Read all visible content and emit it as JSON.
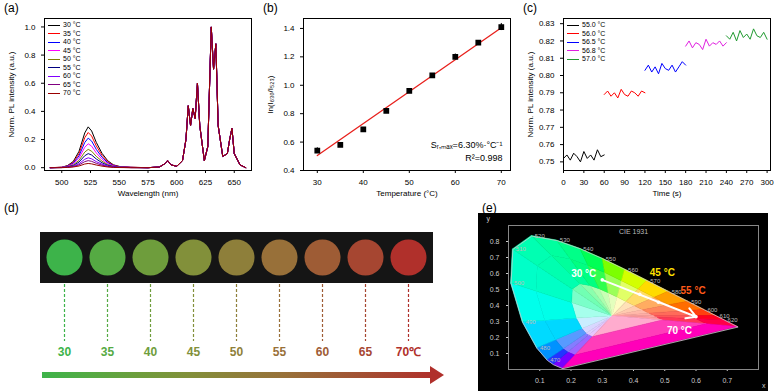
{
  "chart_data": [
    {
      "type": "line",
      "title": "(a)",
      "x_label": "Wavelength (nm)",
      "y_label": "Norm. PL intensity (a.u.)",
      "xlim": [
        485,
        665
      ],
      "xticks": [
        500,
        525,
        550,
        575,
        600,
        625,
        650
      ],
      "ylim": [
        -0.02,
        1.06
      ],
      "yticks": [
        {
          "value": 0,
          "label": "0.0"
        },
        0.2,
        0.4,
        0.6,
        0.8,
        {
          "value": 1,
          "label": "1.0"
        }
      ],
      "legend": "top-left",
      "x": [
        490,
        500,
        505,
        510,
        515,
        520,
        523,
        526,
        530,
        535,
        540,
        545,
        550,
        560,
        575,
        585,
        590,
        592,
        595,
        600,
        605,
        608,
        610,
        612,
        614,
        616,
        618,
        620,
        624,
        627,
        630,
        632,
        634,
        636,
        640,
        644,
        646,
        648,
        650,
        655,
        660
      ],
      "series": [
        {
          "name": "30 °C",
          "color": "#000000",
          "values": [
            0,
            0.003,
            0.015,
            0.044,
            0.116,
            0.247,
            0.29,
            0.261,
            0.18,
            0.102,
            0.049,
            0.02,
            0.009,
            0.003,
            0,
            0.005,
            0.03,
            0.05,
            0.02,
            0.01,
            0.05,
            0.2,
            0.44,
            0.3,
            0.42,
            0.35,
            0.6,
            0.3,
            0.05,
            0.15,
            1,
            0.7,
            0.88,
            0.3,
            0.08,
            0.1,
            0.2,
            0.28,
            0.1,
            0.02,
            0
          ]
        },
        {
          "name": "35 °C",
          "color": "#ff0000",
          "values": [
            0,
            0.003,
            0.013,
            0.038,
            0.1,
            0.213,
            0.25,
            0.225,
            0.155,
            0.088,
            0.043,
            0.018,
            0.008,
            0.003,
            0,
            0.005,
            0.03,
            0.05,
            0.02,
            0.01,
            0.05,
            0.2,
            0.44,
            0.3,
            0.42,
            0.35,
            0.6,
            0.3,
            0.05,
            0.15,
            1,
            0.7,
            0.88,
            0.3,
            0.08,
            0.1,
            0.2,
            0.28,
            0.1,
            0.02,
            0
          ]
        },
        {
          "name": "40 °C",
          "color": "#0000ff",
          "values": [
            0,
            0.002,
            0.011,
            0.032,
            0.084,
            0.179,
            0.21,
            0.189,
            0.13,
            0.074,
            0.036,
            0.015,
            0.006,
            0.002,
            0,
            0.005,
            0.03,
            0.05,
            0.02,
            0.01,
            0.05,
            0.2,
            0.44,
            0.3,
            0.42,
            0.35,
            0.6,
            0.3,
            0.05,
            0.15,
            1,
            0.7,
            0.88,
            0.3,
            0.08,
            0.1,
            0.2,
            0.28,
            0.1,
            0.02,
            0
          ]
        },
        {
          "name": "45 °C",
          "color": "#ff00ff",
          "values": [
            0,
            0.002,
            0.009,
            0.026,
            0.068,
            0.145,
            0.17,
            0.153,
            0.105,
            0.06,
            0.029,
            0.012,
            0.005,
            0.002,
            0,
            0.005,
            0.03,
            0.05,
            0.02,
            0.01,
            0.05,
            0.2,
            0.44,
            0.3,
            0.42,
            0.35,
            0.6,
            0.3,
            0.05,
            0.15,
            1,
            0.7,
            0.88,
            0.3,
            0.08,
            0.1,
            0.2,
            0.28,
            0.1,
            0.02,
            0
          ]
        },
        {
          "name": "50 °C",
          "color": "#808000",
          "values": [
            0,
            0.001,
            0.007,
            0.02,
            0.052,
            0.111,
            0.13,
            0.117,
            0.081,
            0.046,
            0.022,
            0.009,
            0.004,
            0.001,
            0,
            0.005,
            0.03,
            0.05,
            0.02,
            0.01,
            0.05,
            0.2,
            0.44,
            0.3,
            0.42,
            0.35,
            0.6,
            0.3,
            0.05,
            0.15,
            1,
            0.7,
            0.88,
            0.3,
            0.08,
            0.1,
            0.2,
            0.28,
            0.1,
            0.02,
            0
          ]
        },
        {
          "name": "55 °C",
          "color": "#000080",
          "values": [
            0,
            0.001,
            0.005,
            0.015,
            0.04,
            0.085,
            0.1,
            0.09,
            0.062,
            0.035,
            0.017,
            0.007,
            0.003,
            0.001,
            0,
            0.005,
            0.03,
            0.05,
            0.02,
            0.01,
            0.05,
            0.2,
            0.44,
            0.3,
            0.42,
            0.35,
            0.6,
            0.3,
            0.05,
            0.15,
            1,
            0.7,
            0.88,
            0.3,
            0.08,
            0.1,
            0.2,
            0.28,
            0.1,
            0.02,
            0
          ]
        },
        {
          "name": "60 °C",
          "color": "#8000ff",
          "values": [
            0,
            0.001,
            0.004,
            0.011,
            0.028,
            0.06,
            0.07,
            0.063,
            0.043,
            0.025,
            0.012,
            0.005,
            0.002,
            0.001,
            0,
            0.005,
            0.03,
            0.05,
            0.02,
            0.01,
            0.05,
            0.2,
            0.44,
            0.3,
            0.42,
            0.35,
            0.6,
            0.3,
            0.05,
            0.15,
            1,
            0.7,
            0.88,
            0.3,
            0.08,
            0.1,
            0.2,
            0.28,
            0.1,
            0.02,
            0
          ]
        },
        {
          "name": "65 °C",
          "color": "#800080",
          "values": [
            0,
            0.001,
            0.003,
            0.008,
            0.02,
            0.043,
            0.05,
            0.045,
            0.031,
            0.018,
            0.009,
            0.004,
            0.002,
            0,
            0,
            0.005,
            0.03,
            0.05,
            0.02,
            0.01,
            0.05,
            0.2,
            0.44,
            0.3,
            0.42,
            0.35,
            0.6,
            0.3,
            0.05,
            0.15,
            1,
            0.7,
            0.88,
            0.3,
            0.08,
            0.1,
            0.2,
            0.28,
            0.1,
            0.02,
            0
          ]
        },
        {
          "name": "70 °C",
          "color": "#990000",
          "values": [
            0,
            0,
            0.002,
            0.005,
            0.012,
            0.026,
            0.03,
            0.027,
            0.019,
            0.011,
            0.005,
            0.002,
            0.001,
            0,
            0,
            0.005,
            0.03,
            0.05,
            0.02,
            0.01,
            0.05,
            0.2,
            0.44,
            0.3,
            0.42,
            0.35,
            0.6,
            0.3,
            0.05,
            0.15,
            1,
            0.7,
            0.88,
            0.3,
            0.08,
            0.1,
            0.2,
            0.28,
            0.1,
            0.02,
            0
          ]
        }
      ]
    },
    {
      "type": "scatter",
      "title": "(b)",
      "x_label": "Temperature (°C)",
      "y_label": "ln(I₆₃₀/I₅₂₃)",
      "xlim": [
        27,
        72
      ],
      "xticks": [
        30,
        40,
        50,
        60,
        70
      ],
      "ylim": [
        0.4,
        1.47
      ],
      "yticks": [
        0.4,
        0.6,
        0.8,
        {
          "value": 1,
          "label": "1.0"
        },
        1.2,
        1.4
      ],
      "x": [
        30,
        35,
        40,
        45,
        50,
        55,
        60,
        65,
        70
      ],
      "values": [
        0.54,
        0.58,
        0.69,
        0.82,
        0.96,
        1.07,
        1.2,
        1.3,
        1.41
      ],
      "errors": [
        0.02,
        0.015,
        0.01,
        0.015,
        0.01,
        0.01,
        0.02,
        0.015,
        0.025
      ],
      "color": "#000000",
      "marker": "square",
      "fit": {
        "x": [
          30,
          70
        ],
        "values": [
          0.505,
          1.405
        ],
        "color": "#e8201c"
      },
      "annotations": [
        "Sᵣ,ₘₐₓ=6.30%·°C⁻¹",
        "R²=0.998"
      ]
    },
    {
      "type": "line",
      "title": "(c)",
      "x_label": "Time (s)",
      "y_label": "Norm. PL intensity (a.u.)",
      "xlim": [
        0,
        305
      ],
      "xticks": [
        0,
        30,
        60,
        90,
        120,
        150,
        180,
        210,
        240,
        270,
        300
      ],
      "ylim": [
        0.745,
        0.833
      ],
      "yticks": [
        0.75,
        0.76,
        0.77,
        0.78,
        0.79,
        {
          "value": 0.8,
          "label": "0.80"
        },
        0.81,
        0.82,
        0.83
      ],
      "legend": "top-left",
      "series": [
        {
          "name": "55.0 °C",
          "color": "#000000",
          "x": [
            0,
            5,
            10,
            15,
            20,
            25,
            30,
            35,
            40,
            45,
            50,
            55,
            60
          ],
          "values": [
            0.752,
            0.754,
            0.751,
            0.755,
            0.753,
            0.75,
            0.756,
            0.752,
            0.754,
            0.751,
            0.757,
            0.753,
            0.754
          ]
        },
        {
          "name": "56.0 °C",
          "color": "#ff0000",
          "x": [
            60,
            65,
            70,
            75,
            80,
            85,
            90,
            95,
            100,
            105,
            110,
            115,
            120
          ],
          "values": [
            0.789,
            0.791,
            0.788,
            0.79,
            0.787,
            0.792,
            0.789,
            0.788,
            0.791,
            0.79,
            0.788,
            0.791,
            0.79
          ]
        },
        {
          "name": "56.5 °C",
          "color": "#0000ff",
          "x": [
            120,
            125,
            130,
            135,
            140,
            145,
            150,
            155,
            160,
            165,
            170,
            175,
            180
          ],
          "values": [
            0.803,
            0.806,
            0.802,
            0.805,
            0.801,
            0.807,
            0.804,
            0.803,
            0.806,
            0.802,
            0.805,
            0.808,
            0.806
          ]
        },
        {
          "name": "56.8 °C",
          "color": "#e020e0",
          "x": [
            180,
            185,
            190,
            195,
            200,
            205,
            210,
            215,
            220,
            225,
            230,
            235,
            240
          ],
          "values": [
            0.817,
            0.82,
            0.816,
            0.819,
            0.818,
            0.815,
            0.821,
            0.817,
            0.819,
            0.818,
            0.82,
            0.817,
            0.819
          ]
        },
        {
          "name": "57.0 °C",
          "color": "#1f9a2f",
          "x": [
            240,
            245,
            250,
            255,
            260,
            265,
            270,
            275,
            280,
            285,
            290,
            295,
            300
          ],
          "values": [
            0.823,
            0.821,
            0.825,
            0.82,
            0.826,
            0.822,
            0.824,
            0.821,
            0.827,
            0.823,
            0.822,
            0.825,
            0.821
          ]
        }
      ]
    },
    {
      "type": "swatches",
      "title": "(d)",
      "categories": [
        "30",
        "35",
        "40",
        "45",
        "50",
        "55",
        "60",
        "65",
        "70℃"
      ],
      "colors": [
        "#3db34a",
        "#55aa43",
        "#6e9d3c",
        "#82903a",
        "#8e7f3a",
        "#987039",
        "#9e5c35",
        "#a64631",
        "#b0302b"
      ]
    },
    {
      "type": "chromaticity",
      "title": "(e)",
      "subtitle": "CIE 1931",
      "x_label": "x",
      "y_label": "y",
      "xlim": [
        0,
        0.8
      ],
      "xticks": [
        0.1,
        0.2,
        0.3,
        0.4,
        0.5,
        0.6,
        0.7
      ],
      "ylim": [
        0,
        0.9
      ],
      "yticks": [
        0.1,
        0.2,
        0.3,
        0.4,
        0.5,
        0.6,
        0.7,
        0.8
      ],
      "locus": {
        "x": [
          0.1741,
          0.144,
          0.1241,
          0.0913,
          0.0454,
          0.0082,
          0.0139,
          0.0743,
          0.1547,
          0.2296,
          0.3016,
          0.3731,
          0.4441,
          0.5125,
          0.5752,
          0.627,
          0.6658,
          0.6915,
          0.7347
        ],
        "y": [
          0.005,
          0.0297,
          0.0578,
          0.1327,
          0.295,
          0.5384,
          0.7502,
          0.8338,
          0.8059,
          0.7543,
          0.6923,
          0.6245,
          0.5547,
          0.4866,
          0.4242,
          0.3725,
          0.334,
          0.3083,
          0.2653
        ],
        "labels": [
          null,
          null,
          "470",
          "480",
          "490",
          "500",
          "510",
          "520",
          "530",
          "540",
          "550",
          "560",
          "570",
          "580",
          "590",
          "600",
          "610",
          "620",
          null
        ]
      },
      "points": {
        "x": [
          0.3,
          0.42,
          0.48,
          0.6
        ],
        "values": [
          0.56,
          0.47,
          0.42,
          0.33
        ],
        "labels": [
          "30 °C",
          "45 °C",
          "55 °C",
          "70 °C"
        ],
        "colors": [
          "#ffffff",
          "#ffe000",
          "#ff5a1a",
          "#ffffff"
        ]
      }
    }
  ]
}
